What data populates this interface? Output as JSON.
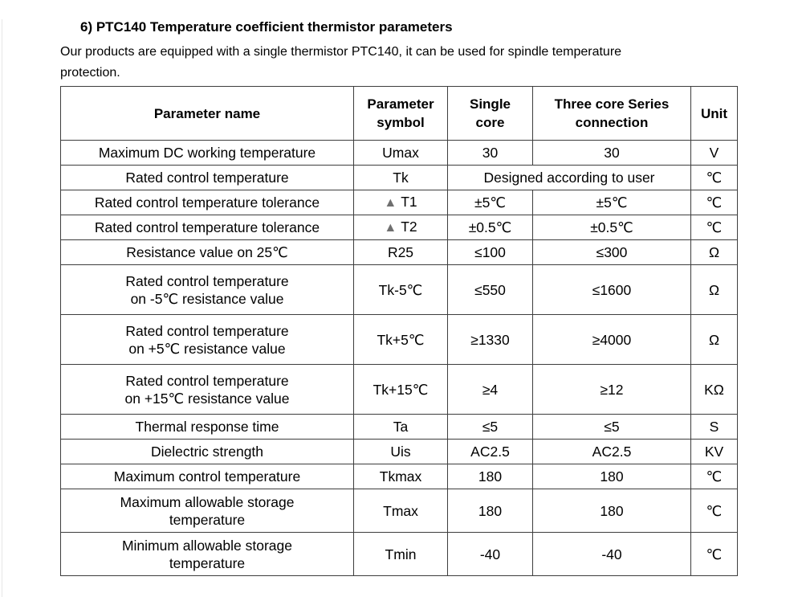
{
  "page": {
    "title": "6) PTC140 Temperature coefficient thermistor parameters",
    "intro": "Our products are equipped with a single thermistor PTC140, it can be used for spindle temperature\nprotection."
  },
  "colors": {
    "triangle_gray": "#6f6f6f",
    "table_border": "#3d3d3d",
    "text": "#000000",
    "background": "#ffffff"
  },
  "table": {
    "headers": {
      "parameter_name": "Parameter name",
      "parameter_symbol": "Parameter\nsymbol",
      "single_core": "Single\ncore",
      "three_core": "Three core Series\nconnection",
      "unit": "Unit"
    },
    "rows": [
      {
        "name": "Maximum DC working temperature",
        "symbol": "Umax",
        "single": "30",
        "three": "30",
        "unit": "V"
      },
      {
        "name": "Rated control temperature",
        "symbol": "Tk",
        "merged": "Designed according to user",
        "unit": "℃"
      },
      {
        "name": "Rated control temperature tolerance",
        "symbol_prefix": "▲",
        "symbol": "T1",
        "single": "±5℃",
        "three": "±5℃",
        "unit": "℃"
      },
      {
        "name": "Rated control temperature tolerance",
        "symbol_prefix": "▲",
        "symbol": "T2",
        "single": "±0.5℃",
        "three": "±0.5℃",
        "unit": "℃"
      },
      {
        "name": "Resistance value on 25℃",
        "symbol": "R25",
        "single": "≤100",
        "three": "≤300",
        "unit": "Ω"
      },
      {
        "name": "Rated control temperature\non -5℃  resistance value",
        "symbol": "Tk-5℃",
        "single": "≤550",
        "three": "≤1600",
        "unit": "Ω"
      },
      {
        "name": "Rated control temperature\non +5℃  resistance value",
        "symbol": "Tk+5℃",
        "single": "≥1330",
        "three": "≥4000",
        "unit": "Ω"
      },
      {
        "name": "Rated control temperature\non +15℃  resistance value",
        "symbol": "Tk+15℃",
        "single": "≥4",
        "three": "≥12",
        "unit": "KΩ"
      },
      {
        "name": "Thermal response time",
        "symbol": "Ta",
        "single": "≤5",
        "three": "≤5",
        "unit": "S"
      },
      {
        "name": "Dielectric strength",
        "symbol": "Uis",
        "single": "AC2.5",
        "three": "AC2.5",
        "unit": "KV"
      },
      {
        "name": "Maximum control temperature",
        "symbol": "Tkmax",
        "single": "180",
        "three": "180",
        "unit": "℃"
      },
      {
        "name": "Maximum allowable storage\ntemperature",
        "symbol": "Tmax",
        "single": "180",
        "three": "180",
        "unit": "℃"
      },
      {
        "name": "Minimum allowable storage\ntemperature",
        "symbol": "Tmin",
        "single": "-40",
        "three": "-40",
        "unit": "℃"
      }
    ]
  }
}
